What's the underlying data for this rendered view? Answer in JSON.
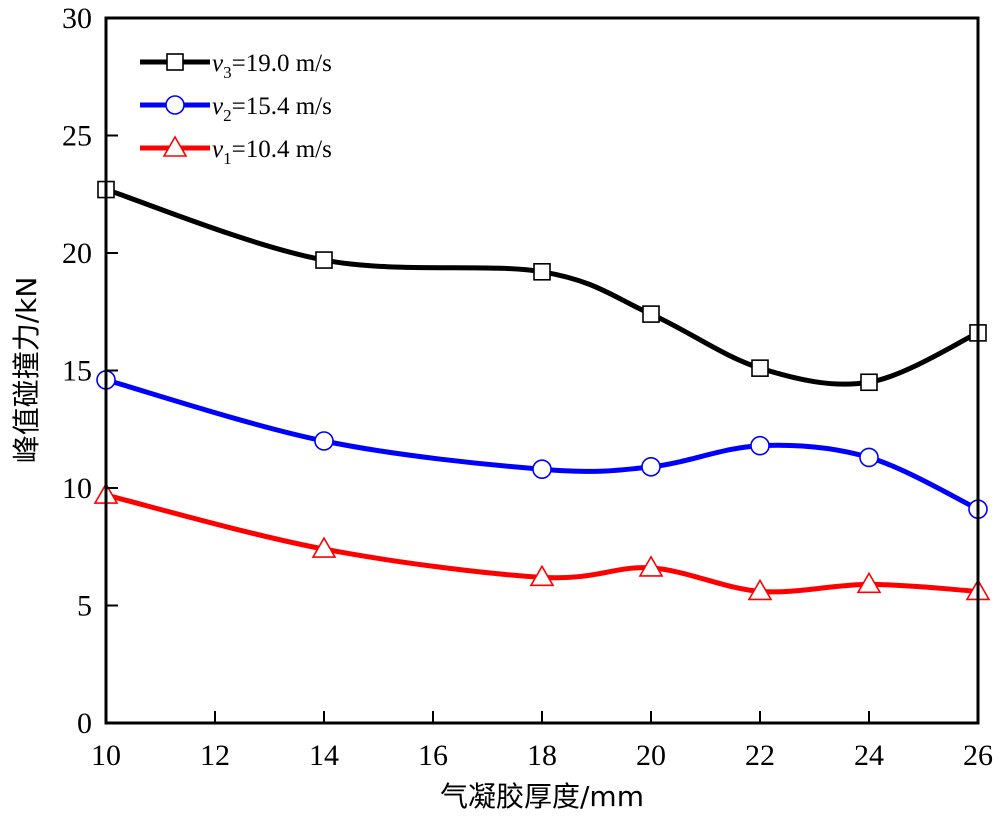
{
  "chart_data": {
    "type": "line",
    "xlabel": "气凝胶厚度/mm",
    "ylabel": "峰值碰撞力/kN",
    "xlim": [
      10,
      26
    ],
    "ylim": [
      0,
      30
    ],
    "xticks": [
      "10",
      "12",
      "14",
      "16",
      "18",
      "20",
      "22",
      "24",
      "26"
    ],
    "yticks": [
      "0",
      "5",
      "10",
      "15",
      "20",
      "25",
      "30"
    ],
    "x": [
      10,
      14,
      18,
      20,
      22,
      24,
      26
    ],
    "series": [
      {
        "name": "v3=19.0 m/s",
        "legend_var": "v",
        "legend_sub": "3",
        "legend_rest": "=19.0 m/s",
        "color": "#000000",
        "marker": "square",
        "values": [
          22.7,
          19.7,
          19.2,
          17.4,
          15.1,
          14.5,
          16.6
        ]
      },
      {
        "name": "v2=15.4 m/s",
        "legend_var": "v",
        "legend_sub": "2",
        "legend_rest": "=15.4 m/s",
        "color": "#0000ff",
        "marker": "circle",
        "values": [
          14.6,
          12.0,
          10.8,
          10.9,
          11.8,
          11.3,
          9.1
        ]
      },
      {
        "name": "v1=10.4 m/s",
        "legend_var": "v",
        "legend_sub": "1",
        "legend_rest": "=10.4 m/s",
        "color": "#ff0000",
        "marker": "triangle",
        "values": [
          9.7,
          7.4,
          6.2,
          6.6,
          5.6,
          5.9,
          5.6
        ]
      }
    ],
    "legend_position": "top-left",
    "grid": false
  }
}
